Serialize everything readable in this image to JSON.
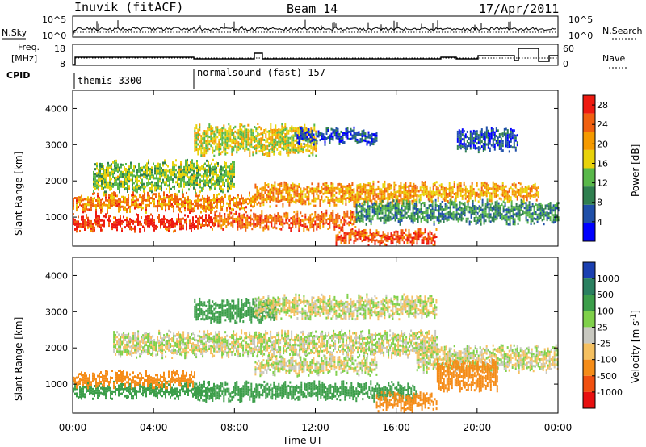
{
  "header": {
    "station": "Inuvik (fitACF)",
    "beam": "Beam 14",
    "date": "17/Apr/2011"
  },
  "panels": {
    "noise": {
      "left_label": "N.Sky",
      "left_ticks": [
        "10^5",
        "10^0"
      ],
      "right_ticks": [
        "10^5",
        "10^0"
      ],
      "right_label": "N.Search"
    },
    "freq": {
      "left_label_1": "Freq.",
      "left_label_2": "[MHz]",
      "left_ticks": [
        "18",
        "8"
      ],
      "right_ticks": [
        "60",
        "0"
      ],
      "right_label": "Nave"
    },
    "cpid": {
      "label": "CPID",
      "entries": [
        {
          "name": "themis 3300",
          "start_hour": 0
        },
        {
          "name": "normalsound (fast) 157",
          "start_hour": 6
        }
      ]
    }
  },
  "chart_data": [
    {
      "type": "heatmap",
      "name": "power",
      "ylabel": "Slant Range [km]",
      "xlabel": "Time UT",
      "xlim": [
        0,
        24
      ],
      "ylim": [
        200,
        4500
      ],
      "x_ticks": [
        "00:00",
        "04:00",
        "08:00",
        "12:00",
        "16:00",
        "20:00",
        "00:00"
      ],
      "y_ticks": [
        1000,
        2000,
        3000,
        4000
      ],
      "colorbar": {
        "label": "Power [dB]",
        "ticks": [
          4,
          8,
          12,
          16,
          20,
          24,
          28
        ],
        "range": [
          0,
          30
        ],
        "colors": [
          "#0000ff",
          "#1f4fa8",
          "#2f7f4f",
          "#59b84a",
          "#e8d20a",
          "#f59a00",
          "#f06010",
          "#ee1a10"
        ]
      },
      "bands": [
        {
          "start_hour": 0,
          "end_hour": 7,
          "range_km": [
            700,
            1000
          ],
          "value": 27
        },
        {
          "start_hour": 0,
          "end_hour": 9,
          "range_km": [
            1200,
            1600
          ],
          "value": 22
        },
        {
          "start_hour": 1,
          "end_hour": 8,
          "range_km": [
            1800,
            2500
          ],
          "value": 14
        },
        {
          "start_hour": 7,
          "end_hour": 14,
          "range_km": [
            700,
            1100
          ],
          "value": 24
        },
        {
          "start_hour": 9,
          "end_hour": 17,
          "range_km": [
            1400,
            1900
          ],
          "value": 21
        },
        {
          "start_hour": 13,
          "end_hour": 18,
          "range_km": [
            300,
            600
          ],
          "value": 26
        },
        {
          "start_hour": 14,
          "end_hour": 24,
          "range_km": [
            900,
            1400
          ],
          "value": 10
        },
        {
          "start_hour": 17,
          "end_hour": 23,
          "range_km": [
            1500,
            1900
          ],
          "value": 20
        },
        {
          "start_hour": 19,
          "end_hour": 22,
          "range_km": [
            2900,
            3400
          ],
          "value": 6
        },
        {
          "start_hour": 6,
          "end_hour": 12,
          "range_km": [
            2800,
            3500
          ],
          "value": 17
        },
        {
          "start_hour": 11,
          "end_hour": 15,
          "range_km": [
            3100,
            3400
          ],
          "value": 6
        }
      ]
    },
    {
      "type": "heatmap",
      "name": "velocity",
      "ylabel": "Slant Range [km]",
      "xlabel": "Time UT",
      "xlim": [
        0,
        24
      ],
      "ylim": [
        200,
        4500
      ],
      "x_ticks": [
        "00:00",
        "04:00",
        "08:00",
        "12:00",
        "16:00",
        "20:00",
        "00:00"
      ],
      "y_ticks": [
        1000,
        2000,
        3000,
        4000
      ],
      "colorbar": {
        "label": "Velocity [m s^-1]",
        "ticks": [
          "1000",
          "500",
          "100",
          "25",
          "-25",
          "-100",
          "-500",
          "-1000"
        ],
        "colors": [
          "#1a3fb0",
          "#2a8060",
          "#3c9e4a",
          "#7fd04a",
          "#c8c8c0",
          "#f5c060",
          "#f58c18",
          "#f05010",
          "#e81010"
        ]
      },
      "bands": [
        {
          "start_hour": 0,
          "end_hour": 7,
          "range_km": [
            700,
            1000
          ],
          "value": 300
        },
        {
          "start_hour": 0,
          "end_hour": 6,
          "range_km": [
            1000,
            1300
          ],
          "value": -200
        },
        {
          "start_hour": 2,
          "end_hour": 18,
          "range_km": [
            1800,
            2400
          ],
          "value": 0
        },
        {
          "start_hour": 6,
          "end_hour": 17,
          "range_km": [
            600,
            1000
          ],
          "value": 300
        },
        {
          "start_hour": 9,
          "end_hour": 15,
          "range_km": [
            1300,
            1700
          ],
          "value": 0
        },
        {
          "start_hour": 15,
          "end_hour": 18,
          "range_km": [
            300,
            700
          ],
          "value": -300
        },
        {
          "start_hour": 17,
          "end_hour": 24,
          "range_km": [
            1400,
            2000
          ],
          "value": 0
        },
        {
          "start_hour": 18,
          "end_hour": 21,
          "range_km": [
            900,
            1600
          ],
          "value": -300
        },
        {
          "start_hour": 6,
          "end_hour": 10,
          "range_km": [
            2800,
            3300
          ],
          "value": 200
        },
        {
          "start_hour": 9,
          "end_hour": 18,
          "range_km": [
            2900,
            3400
          ],
          "value": 0
        }
      ]
    }
  ]
}
